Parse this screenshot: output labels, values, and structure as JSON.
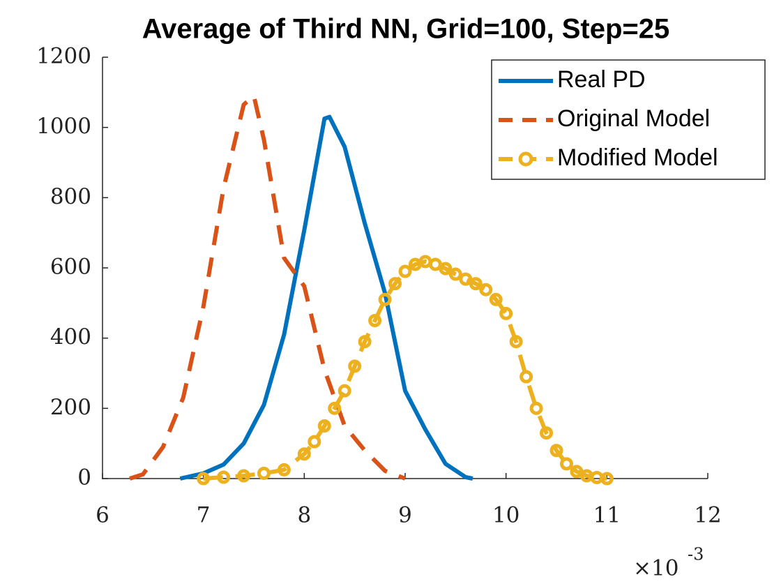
{
  "chart_data": {
    "type": "line",
    "title": "Average of Third NN, Grid=100, Step=25",
    "x_multiplier": {
      "base": "×10",
      "exponent": "-3"
    },
    "xlim": [
      6,
      12
    ],
    "xticks": [
      6,
      7,
      8,
      9,
      10,
      11,
      12
    ],
    "ylim": [
      0,
      1200
    ],
    "yticks": [
      0,
      200,
      400,
      600,
      800,
      1000,
      1200
    ],
    "legend_position": "upper right",
    "series": [
      {
        "name": "Real PD",
        "color": "#0072bd",
        "style": "solid",
        "x": [
          6.77,
          7.0,
          7.2,
          7.4,
          7.6,
          7.8,
          8.0,
          8.2,
          8.25,
          8.4,
          8.6,
          8.8,
          9.0,
          9.2,
          9.4,
          9.6,
          9.67
        ],
        "values": [
          0,
          15,
          40,
          100,
          210,
          410,
          707,
          1025,
          1030,
          945,
          727,
          528,
          250,
          140,
          42,
          4,
          0
        ]
      },
      {
        "name": "Original Model",
        "color": "#d95319",
        "style": "dashed",
        "x": [
          6.27,
          6.4,
          6.6,
          6.8,
          7.0,
          7.2,
          7.4,
          7.5,
          7.6,
          7.8,
          8.0,
          8.2,
          8.4,
          8.6,
          8.8,
          9.0
        ],
        "values": [
          0,
          12,
          90,
          230,
          490,
          827,
          1065,
          1090,
          965,
          628,
          548,
          310,
          150,
          80,
          22,
          0
        ]
      },
      {
        "name": "Modified Model",
        "color": "#edb120",
        "style": "dashed-markers",
        "x": [
          7.0,
          7.2,
          7.4,
          7.6,
          7.8,
          8.0,
          8.1,
          8.2,
          8.3,
          8.4,
          8.5,
          8.6,
          8.7,
          8.8,
          8.9,
          9.0,
          9.1,
          9.2,
          9.3,
          9.4,
          9.5,
          9.6,
          9.7,
          9.8,
          9.9,
          10.0,
          10.1,
          10.2,
          10.3,
          10.4,
          10.5,
          10.6,
          10.7,
          10.8,
          10.9,
          11.0
        ],
        "values": [
          0,
          4,
          8,
          15,
          25,
          70,
          105,
          150,
          200,
          250,
          320,
          390,
          450,
          510,
          555,
          590,
          610,
          618,
          610,
          598,
          582,
          568,
          555,
          538,
          510,
          470,
          390,
          290,
          200,
          130,
          80,
          42,
          20,
          8,
          3,
          0
        ]
      }
    ]
  }
}
